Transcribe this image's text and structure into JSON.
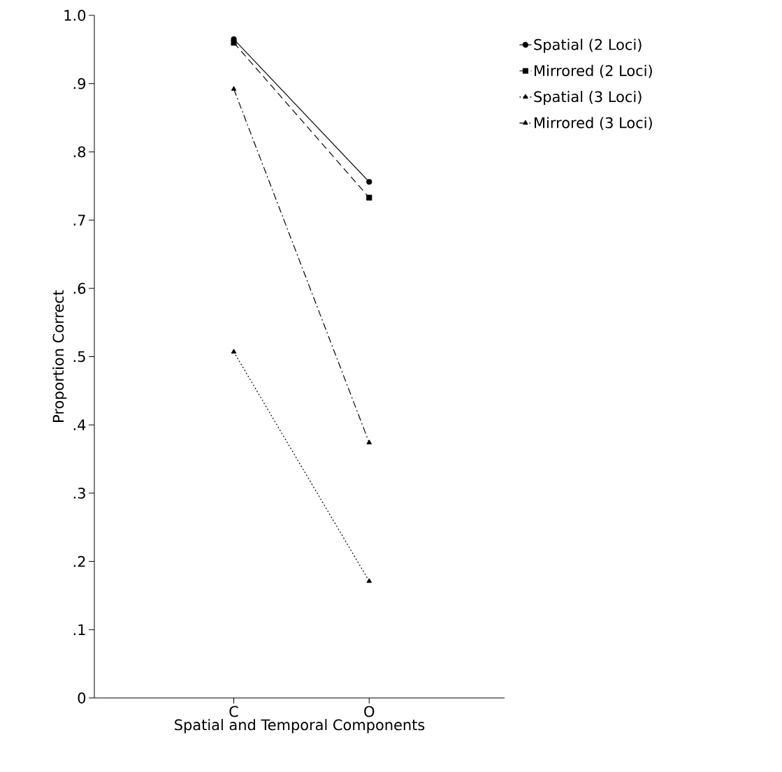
{
  "chart_data": {
    "type": "line",
    "xlabel": "Spatial and Temporal Components",
    "ylabel": "Proportion Correct",
    "categories": [
      "C",
      "O"
    ],
    "ylim": [
      0,
      1.0
    ],
    "yticks": [
      0,
      {
        "value": 0.1,
        "label": ".1"
      },
      {
        "value": 0.2,
        "label": ".2"
      },
      {
        "value": 0.3,
        "label": ".3"
      },
      {
        "value": 0.4,
        "label": ".4"
      },
      {
        "value": 0.5,
        "label": ".5"
      },
      {
        "value": 0.6,
        "label": ".6"
      },
      {
        "value": 0.7,
        "label": ".7"
      },
      {
        "value": 0.8,
        "label": ".8"
      },
      {
        "value": 0.9,
        "label": ".9"
      },
      {
        "value": 1.0,
        "label": "1.0"
      }
    ],
    "legend": "top right",
    "series": [
      {
        "name": "Spatial (2 Loci)",
        "color": "#000000",
        "values": [
          0.965,
          0.756
        ],
        "marker": "circle",
        "line_style": "solid"
      },
      {
        "name": "Mirrored (2 Loci)",
        "color": "#000000",
        "values": [
          0.96,
          0.733
        ],
        "marker": "square",
        "line_style": "dashed"
      },
      {
        "name": "Spatial (3 Loci)",
        "color": "#000000",
        "values": [
          0.507,
          0.171
        ],
        "marker": "triangle",
        "line_style": "dotted"
      },
      {
        "name": "Mirrored (3 Loci)",
        "color": "#000000",
        "values": [
          0.892,
          0.374
        ],
        "marker": "triangle",
        "line_style": "dashdot"
      }
    ]
  }
}
